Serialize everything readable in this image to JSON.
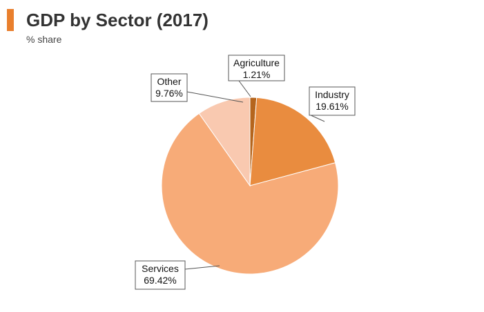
{
  "header": {
    "title": "GDP by Sector (2017)",
    "subtitle": "% share",
    "accent_color": "#e97f2d"
  },
  "chart_data": {
    "type": "pie",
    "title": "GDP by Sector (2017)",
    "subtitle": "% share",
    "start_angle_deg": 0,
    "direction": "clockwise",
    "slices": [
      {
        "name": "Agriculture",
        "value": 1.21,
        "label": "1.21%",
        "color": "#b5651d"
      },
      {
        "name": "Industry",
        "value": 19.61,
        "label": "19.61%",
        "color": "#e98c3f"
      },
      {
        "name": "Services",
        "value": 69.42,
        "label": "69.42%",
        "color": "#f7ab78"
      },
      {
        "name": "Other",
        "value": 9.76,
        "label": "9.76%",
        "color": "#f9c9b0"
      }
    ]
  }
}
